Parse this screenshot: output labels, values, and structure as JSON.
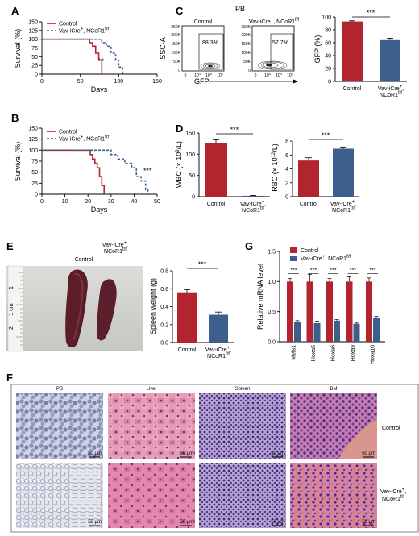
{
  "panels": {
    "A": {
      "label": "A",
      "ylabel": "Survival (%)",
      "xlabel": "Days",
      "legend": [
        "Control",
        "Vav-iCre",
        "+",
        ", NCoR1",
        "f/f"
      ],
      "sig": "**",
      "xticks": [
        "0",
        "50",
        "100",
        "150"
      ],
      "yticks": [
        "0",
        "25",
        "50",
        "75",
        "100",
        "125",
        "150"
      ]
    },
    "B": {
      "label": "B",
      "ylabel": "Survival (%)",
      "xlabel": "Days",
      "legend": [
        "Control",
        "Vav-iCre",
        "+",
        ", NCoR1",
        "f/f"
      ],
      "sig": "***",
      "xticks": [
        "0",
        "10",
        "20",
        "30",
        "40",
        "50"
      ],
      "yticks": [
        "0",
        "25",
        "50",
        "75",
        "100",
        "125",
        "150"
      ]
    },
    "C": {
      "label": "C",
      "pb": "PB",
      "ctrl_title": "Control",
      "ko_title": [
        "Vav-iCre",
        "+",
        ", NCoR1",
        "f/f"
      ],
      "ctrl_pct": "88.3%",
      "ko_pct": "57.7%",
      "flow_y": "SSC-A",
      "flow_x": "GFP",
      "flow_yticks": [
        "0",
        "50K",
        "100K",
        "150K",
        "200K",
        "250K"
      ],
      "flow_xticks": [
        "0",
        "10",
        "3",
        "10",
        "4",
        "10",
        "5"
      ],
      "bar_ylabel": "GFP (%)",
      "bar_yticks": [
        "0",
        "20",
        "40",
        "60",
        "80",
        "100"
      ],
      "sig": "***",
      "cats": [
        "Control",
        "Vav-iCre",
        "+",
        ",",
        "NCoR1",
        "f/f"
      ]
    },
    "D": {
      "label": "D",
      "wbc_ylabel": [
        "WBC (× 10",
        "9",
        "/L)"
      ],
      "wbc_yticks": [
        "0",
        "50",
        "100",
        "150"
      ],
      "rbc_ylabel": [
        "RBC (× 10",
        "12",
        "/L)"
      ],
      "rbc_yticks": [
        "0",
        "2",
        "4",
        "6",
        "8"
      ],
      "sig1": "***",
      "sig2": "***",
      "cats": [
        "Control",
        "Vav-iCre",
        "+",
        ",",
        "NCoR1",
        "f/f"
      ]
    },
    "E": {
      "label": "E",
      "photo_ctrl": "Control",
      "photo_ko": [
        "Vav-iCre",
        "+",
        ",",
        "NCoR1",
        "f/f"
      ],
      "ruler_label": "1 cm",
      "ruler_marks": [
        "1",
        "2"
      ],
      "ylabel": "Spleen weight (g)",
      "yticks": [
        "0.0",
        "0.2",
        "0.4",
        "0.6",
        "0.8"
      ],
      "sig": "***",
      "cats": [
        "Control",
        "Vav-iCre",
        "+",
        ",",
        "NCoR1",
        "f/f"
      ]
    },
    "G": {
      "label": "G",
      "ylabel": "Relative mRNA level",
      "yticks": [
        "0.0",
        "0.5",
        "1.0",
        "1.5"
      ],
      "legend": [
        "Control",
        "Vav-iCre",
        "+",
        ", NCoR1",
        "f/f"
      ],
      "sig": "***"
    },
    "F": {
      "label": "F",
      "cols": [
        "PB",
        "Liver",
        "Spleen",
        "BM"
      ],
      "row_ctrl": "Control",
      "row_ko": [
        "Vav-iCre",
        "+",
        ",",
        "NCoR1",
        "f/f"
      ],
      "scale": "50 μm"
    }
  },
  "colors": {
    "control": "#b2252e",
    "ko": "#3c5f8c"
  },
  "chart_data": [
    {
      "panel": "A",
      "type": "line",
      "xlabel": "Days",
      "ylabel": "Survival (%)",
      "xlim": [
        0,
        150
      ],
      "ylim": [
        0,
        150
      ],
      "series": [
        {
          "name": "Control",
          "x": [
            0,
            58,
            62,
            66,
            70,
            74,
            78,
            78
          ],
          "y": [
            100,
            100,
            90,
            80,
            60,
            40,
            20,
            0
          ]
        },
        {
          "name": "Vav-iCre+, NCoR1f/f",
          "x": [
            0,
            72,
            78,
            84,
            90,
            96,
            100,
            105
          ],
          "y": [
            100,
            100,
            90,
            80,
            60,
            40,
            20,
            0
          ]
        }
      ]
    },
    {
      "panel": "B",
      "type": "line",
      "xlabel": "Days",
      "ylabel": "Survival (%)",
      "xlim": [
        0,
        50
      ],
      "ylim": [
        0,
        150
      ],
      "series": [
        {
          "name": "Control",
          "x": [
            0,
            20,
            21,
            22,
            23,
            24,
            25,
            26,
            27
          ],
          "y": [
            100,
            100,
            90,
            80,
            70,
            60,
            40,
            20,
            0
          ]
        },
        {
          "name": "Vav-iCre+, NCoR1f/f",
          "x": [
            0,
            28,
            30,
            33,
            36,
            39,
            41,
            43,
            45,
            46
          ],
          "y": [
            100,
            100,
            90,
            80,
            70,
            60,
            40,
            30,
            10,
            0
          ]
        }
      ]
    },
    {
      "panel": "C",
      "type": "bar",
      "ylabel": "GFP (%)",
      "ylim": [
        0,
        100
      ],
      "categories": [
        "Control",
        "Vav-iCre+, NCoR1f/f"
      ],
      "values": [
        93,
        64
      ],
      "errors": [
        1,
        3
      ]
    },
    {
      "panel": "D-WBC",
      "type": "bar",
      "ylim": [
        0,
        150
      ],
      "categories": [
        "Control",
        "Vav-iCre+, NCoR1f/f"
      ],
      "values": [
        126,
        2
      ],
      "errors": [
        8,
        1
      ]
    },
    {
      "panel": "D-RBC",
      "type": "bar",
      "ylim": [
        0,
        8
      ],
      "categories": [
        "Control",
        "Vav-iCre+, NCoR1f/f"
      ],
      "values": [
        5.2,
        6.9
      ],
      "errors": [
        0.4,
        0.25
      ]
    },
    {
      "panel": "E",
      "type": "bar",
      "ylabel": "Spleen weight (g)",
      "ylim": [
        0,
        0.8
      ],
      "categories": [
        "Control",
        "Vav-iCre+, NCoR1f/f"
      ],
      "values": [
        0.56,
        0.31
      ],
      "errors": [
        0.03,
        0.03
      ]
    },
    {
      "panel": "G",
      "type": "bar",
      "ylabel": "Relative mRNA level",
      "ylim": [
        0,
        1.5
      ],
      "categories": [
        "Meis1",
        "Hoxa5",
        "Hoxa6",
        "Hoxa9",
        "Hoxa10"
      ],
      "series": [
        {
          "name": "Control",
          "values": [
            1.0,
            1.0,
            1.0,
            1.0,
            1.0
          ],
          "errors": [
            0.05,
            0.12,
            0.05,
            0.08,
            0.06
          ]
        },
        {
          "name": "Vav-iCre+, NCoR1f/f",
          "values": [
            0.33,
            0.31,
            0.35,
            0.3,
            0.4
          ],
          "errors": [
            0.02,
            0.03,
            0.02,
            0.02,
            0.02
          ]
        }
      ]
    }
  ]
}
